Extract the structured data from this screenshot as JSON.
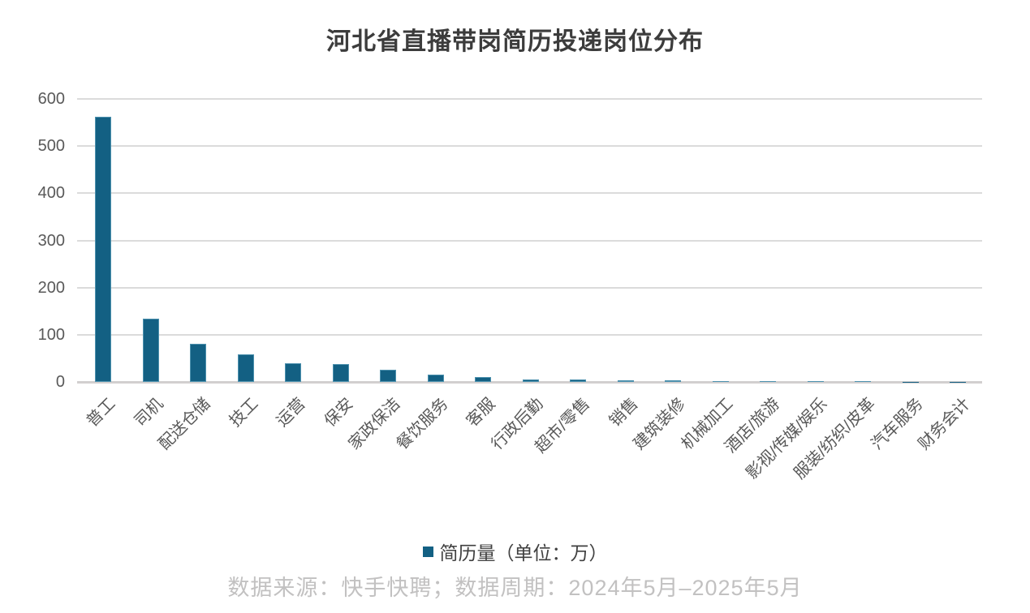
{
  "chart_data": {
    "type": "bar",
    "title": "河北省直播带岗简历投递岗位分布",
    "categories": [
      "普工",
      "司机",
      "配送仓储",
      "技工",
      "运营",
      "保安",
      "家政保洁",
      "餐饮服务",
      "客服",
      "行政后勤",
      "超市/零售",
      "销售",
      "建筑装修",
      "机械加工",
      "酒店/旅游",
      "影视/传媒/娱乐",
      "服装/纺织/皮革",
      "汽车服务",
      "财务会计"
    ],
    "values": [
      562,
      134,
      80,
      59,
      39,
      37,
      26,
      16,
      10,
      5.5,
      5,
      4,
      3,
      2.5,
      2.5,
      2,
      1,
      0.7,
      0.4
    ],
    "series_name": "简历量",
    "legend": "简历量（单位：万）",
    "legend_position": "bottom",
    "xlabel": "",
    "ylabel": "",
    "ylim": [
      0,
      600
    ],
    "ytick_step": 100,
    "yticks": [
      0,
      100,
      200,
      300,
      400,
      500,
      600
    ],
    "grid": true,
    "bar_color": "#136083",
    "source_note": "数据来源：快手快聘；数据周期：2024年5月–2025年5月"
  }
}
